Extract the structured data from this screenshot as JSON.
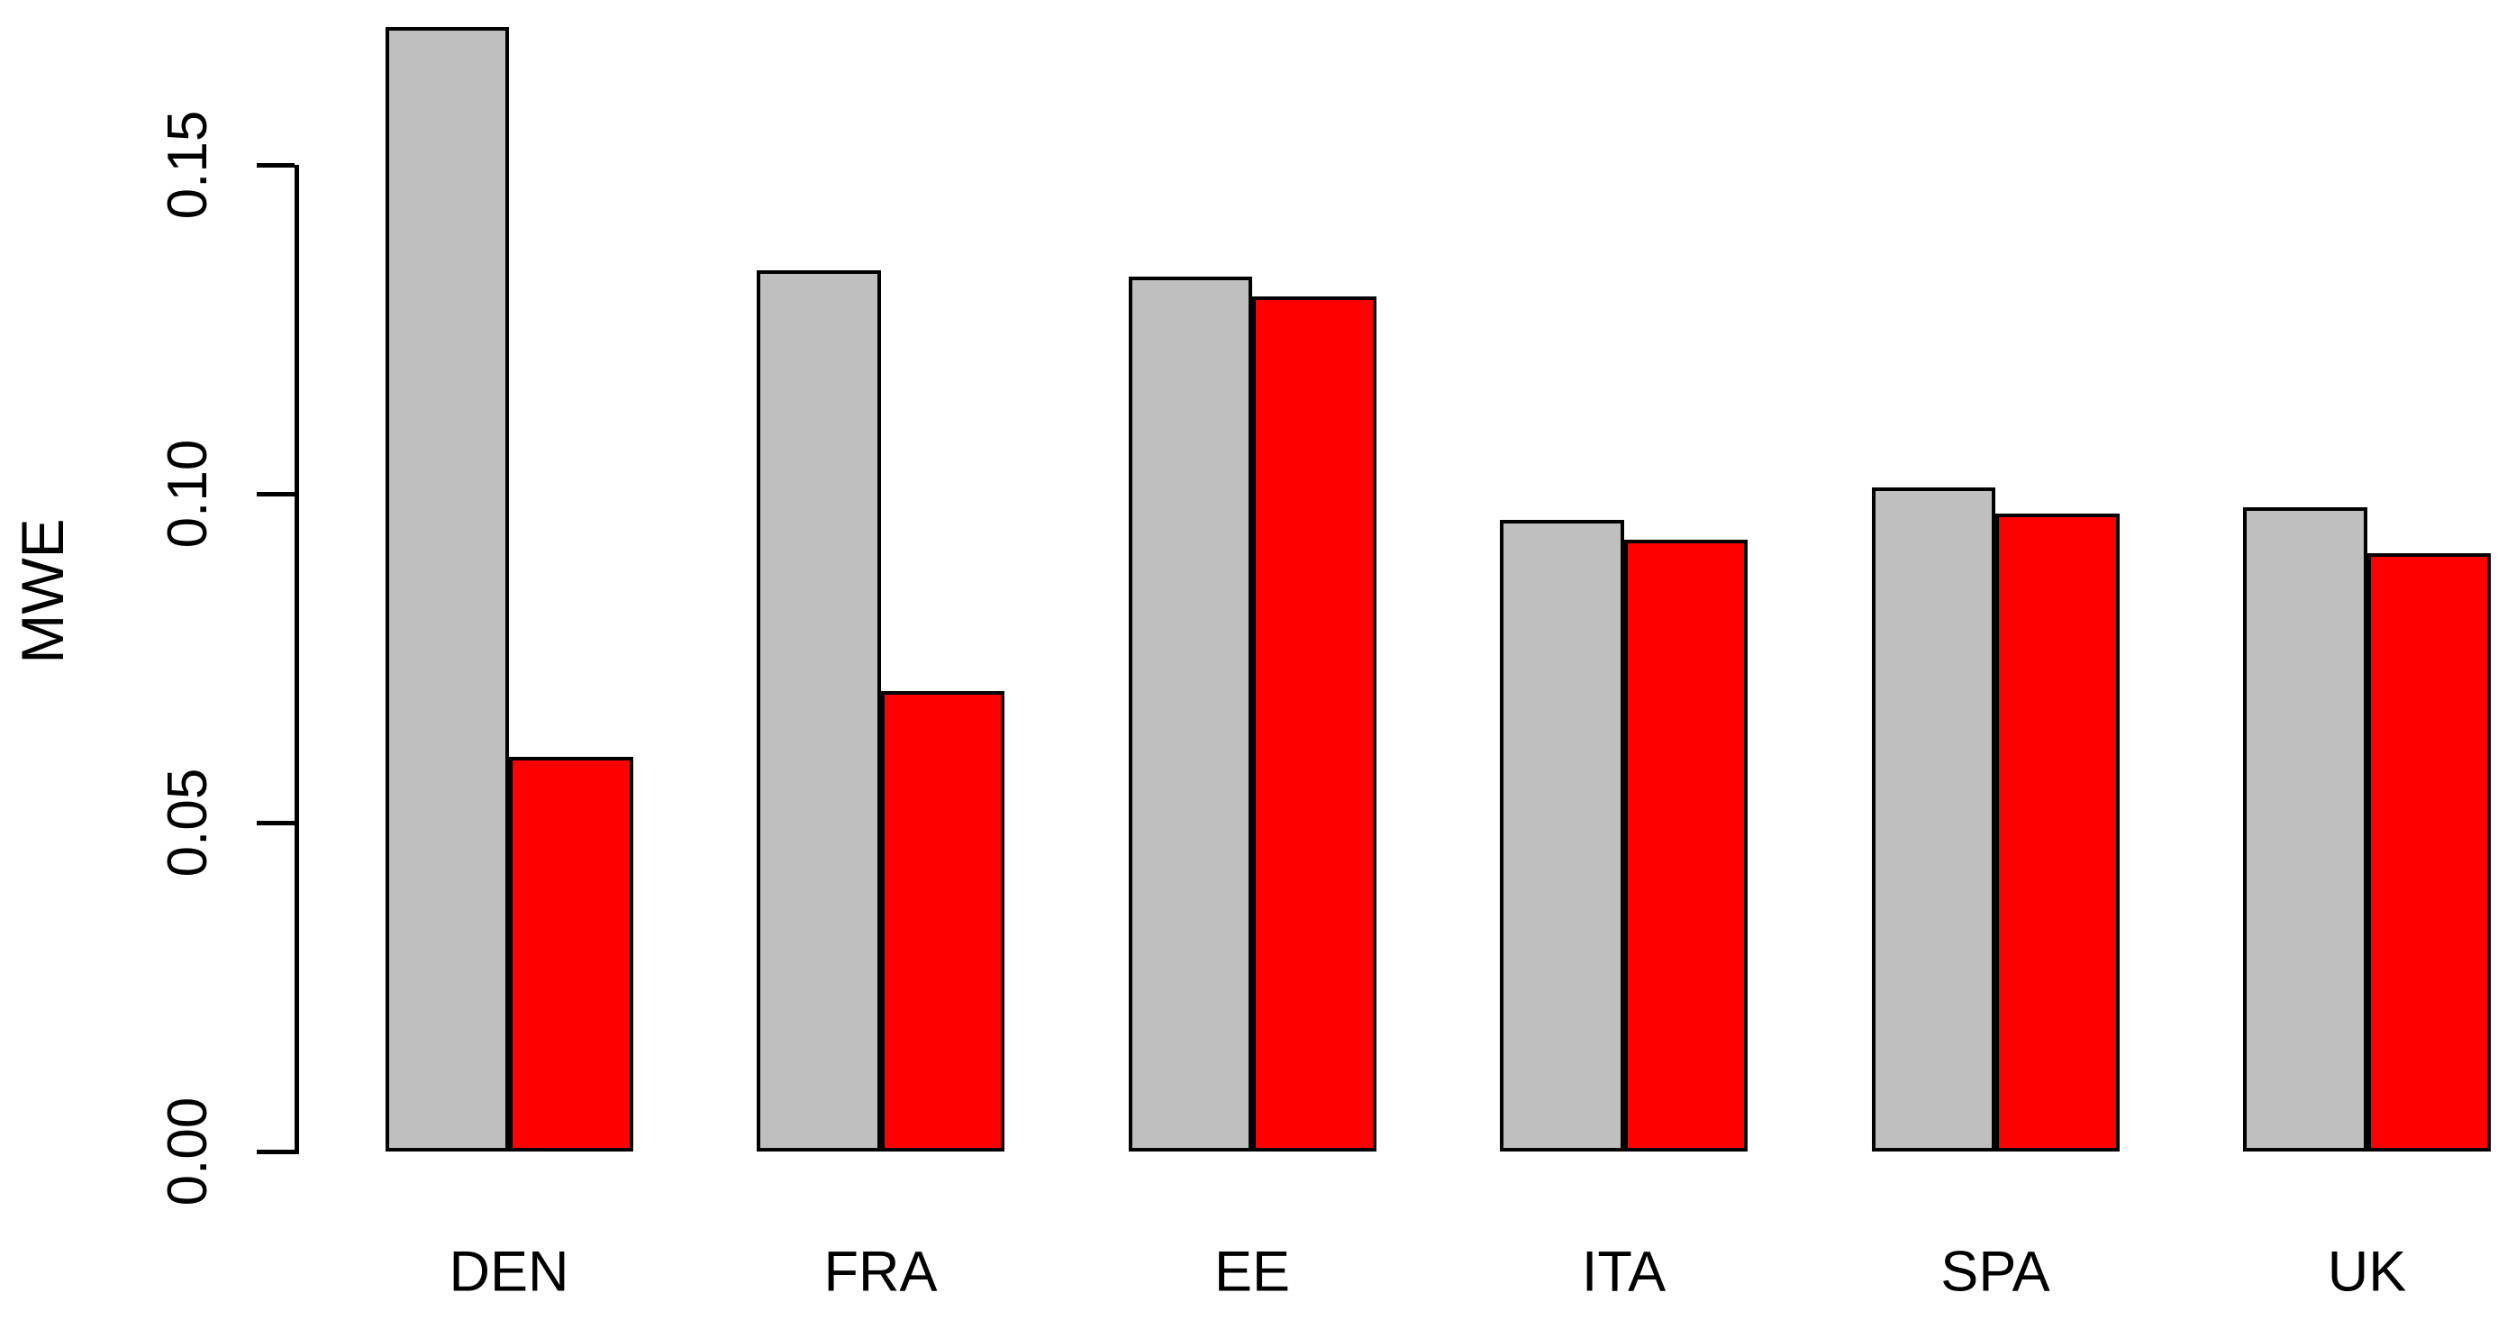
{
  "chart_data": {
    "type": "bar",
    "title": "",
    "xlabel": "",
    "ylabel": "MWE",
    "categories": [
      "DEN",
      "FRA",
      "EE",
      "ITA",
      "SPA",
      "UK"
    ],
    "series": [
      {
        "name": "gray",
        "color": "#bfbfbf",
        "values": [
          0.171,
          0.134,
          0.133,
          0.096,
          0.101,
          0.098
        ]
      },
      {
        "name": "red",
        "color": "#ff0000",
        "values": [
          0.06,
          0.07,
          0.13,
          0.093,
          0.097,
          0.091
        ]
      }
    ],
    "y_ticks": [
      {
        "value": 0.0,
        "label": "0.00"
      },
      {
        "value": 0.05,
        "label": "0.05"
      },
      {
        "value": 0.1,
        "label": "0.10"
      },
      {
        "value": 0.15,
        "label": "0.15"
      }
    ],
    "ylim": [
      0,
      0.175
    ],
    "grid": false,
    "legend": "none",
    "bar_border_color": "#000000",
    "axis_color": "#000000",
    "text_color": "#000000",
    "background_color": "#ffffff"
  }
}
